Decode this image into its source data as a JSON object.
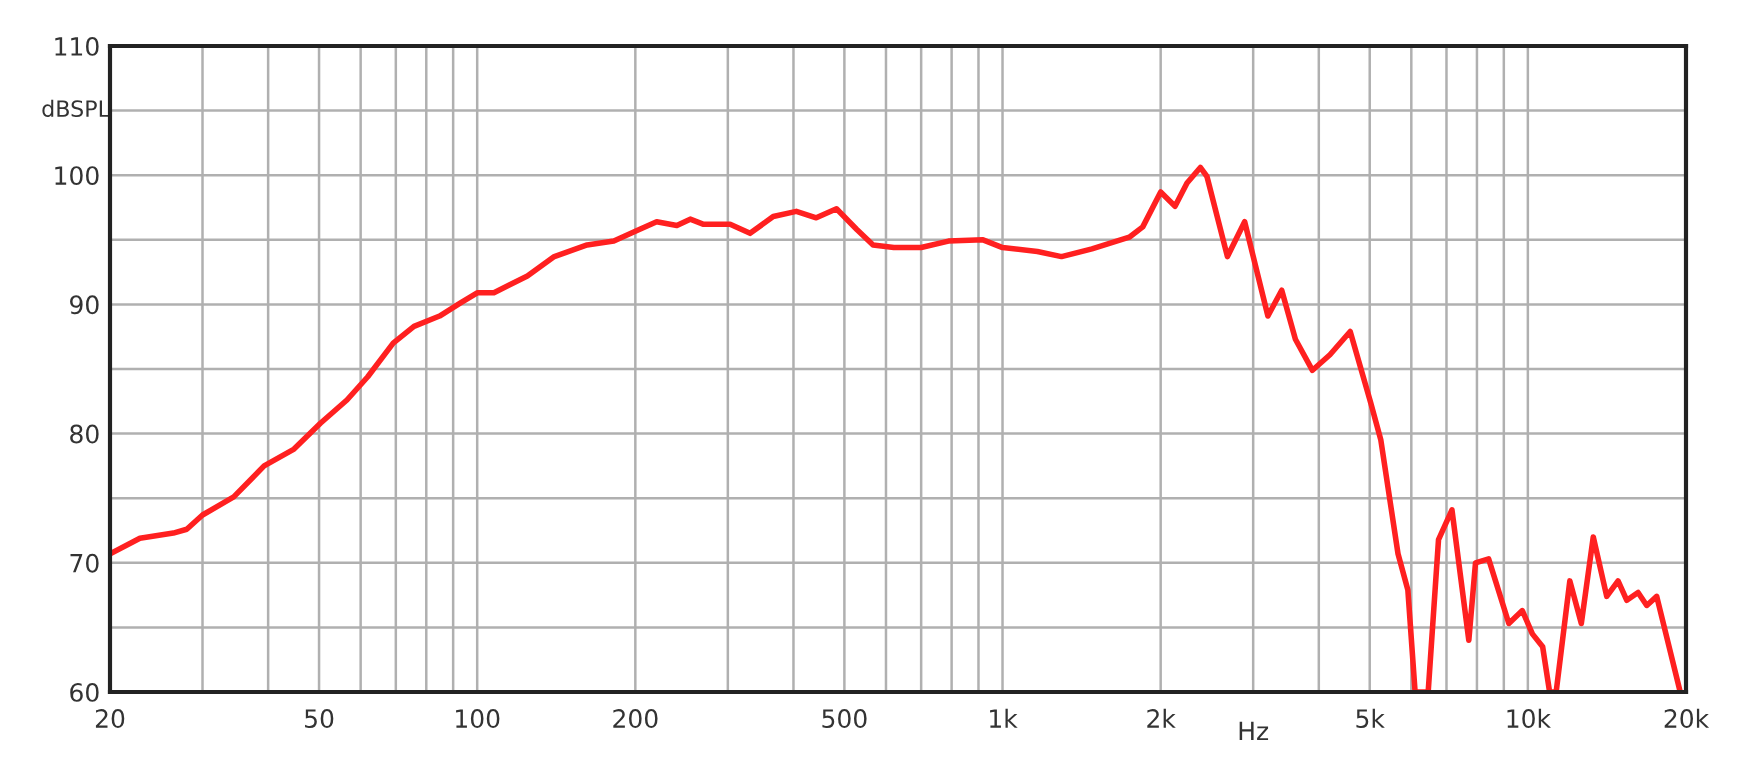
{
  "chart_data": {
    "type": "line",
    "xlabel": "Hz",
    "ylabel": "dBSPL",
    "log": "x",
    "grid": true,
    "marker": "none",
    "line_style": "solid",
    "xlim": [
      20,
      20000
    ],
    "ylim": [
      60,
      110
    ],
    "xticks": [
      20,
      {
        "value": 30,
        "label": null
      },
      {
        "value": 40,
        "label": null
      },
      50,
      {
        "value": 60,
        "label": null
      },
      {
        "value": 70,
        "label": null
      },
      {
        "value": 80,
        "label": null
      },
      {
        "value": 90,
        "label": null
      },
      100,
      200,
      {
        "value": 300,
        "label": null
      },
      {
        "value": 400,
        "label": null
      },
      500,
      {
        "value": 600,
        "label": null
      },
      {
        "value": 700,
        "label": null
      },
      {
        "value": 800,
        "label": null
      },
      {
        "value": 900,
        "label": null
      },
      {
        "value": 1000,
        "label": "1k"
      },
      {
        "value": 2000,
        "label": "2k"
      },
      {
        "value": 3000,
        "label": null
      },
      {
        "value": 4000,
        "label": null
      },
      {
        "value": 5000,
        "label": "5k"
      },
      {
        "value": 6000,
        "label": null
      },
      {
        "value": 7000,
        "label": null
      },
      {
        "value": 8000,
        "label": null
      },
      {
        "value": 9000,
        "label": null
      },
      {
        "value": 10000,
        "label": "10k"
      },
      {
        "value": 20000,
        "label": "20k"
      }
    ],
    "yticks": [
      60,
      {
        "value": 65,
        "label": null
      },
      70,
      {
        "value": 75,
        "label": null
      },
      80,
      {
        "value": 85,
        "label": null
      },
      90,
      {
        "value": 95,
        "label": null
      },
      100,
      {
        "value": 105,
        "label": null
      },
      110
    ],
    "series": [
      {
        "color": "#ff2020",
        "x": [
          20,
          22.8,
          26.4,
          28,
          30,
          34.4,
          39.3,
          44.8,
          50.3,
          56.5,
          61.9,
          69.2,
          75.8,
          84.8,
          92.8,
          100,
          107.6,
          124.6,
          140.2,
          161.9,
          182,
          201,
          219.6,
          239.9,
          254.4,
          269.8,
          303,
          330.7,
          366,
          405,
          442,
          483,
          528,
          567,
          621,
          700,
          789,
          918,
          1000,
          1165,
          1295,
          1480,
          1743,
          1849,
          2000,
          2130,
          2245,
          2380,
          2450,
          2680,
          2890,
          3200,
          3400,
          3610,
          3890,
          4200,
          4590,
          5020,
          5250,
          5660,
          5910,
          6100,
          6460,
          6760,
          7170,
          7720,
          7950,
          8420,
          9200,
          9760,
          10200,
          10670,
          11000,
          11320,
          12020,
          12640,
          13320,
          14130,
          14850,
          15430,
          16210,
          16840,
          17590,
          19500
        ],
        "values": [
          70.7,
          71.9,
          72.3,
          72.6,
          73.7,
          75.1,
          77.5,
          78.8,
          80.8,
          82.6,
          84.4,
          87.0,
          88.3,
          89.1,
          90.1,
          90.9,
          90.9,
          92.2,
          93.7,
          94.6,
          94.9,
          95.7,
          96.4,
          96.1,
          96.6,
          96.2,
          96.2,
          95.5,
          96.8,
          97.2,
          96.7,
          97.4,
          95.8,
          94.6,
          94.4,
          94.4,
          94.9,
          95.0,
          94.4,
          94.1,
          93.7,
          94.3,
          95.2,
          96.0,
          98.7,
          97.6,
          99.4,
          100.6,
          99.9,
          93.7,
          96.4,
          89.1,
          91.1,
          87.3,
          84.9,
          86.1,
          87.9,
          82.4,
          79.5,
          70.7,
          67.9,
          60,
          60,
          71.8,
          74.1,
          64.0,
          70.0,
          70.3,
          65.3,
          66.3,
          64.5,
          63.5,
          60,
          60,
          68.6,
          65.3,
          72.0,
          67.4,
          68.6,
          67.1,
          67.7,
          66.7,
          67.4,
          60
        ]
      }
    ]
  }
}
